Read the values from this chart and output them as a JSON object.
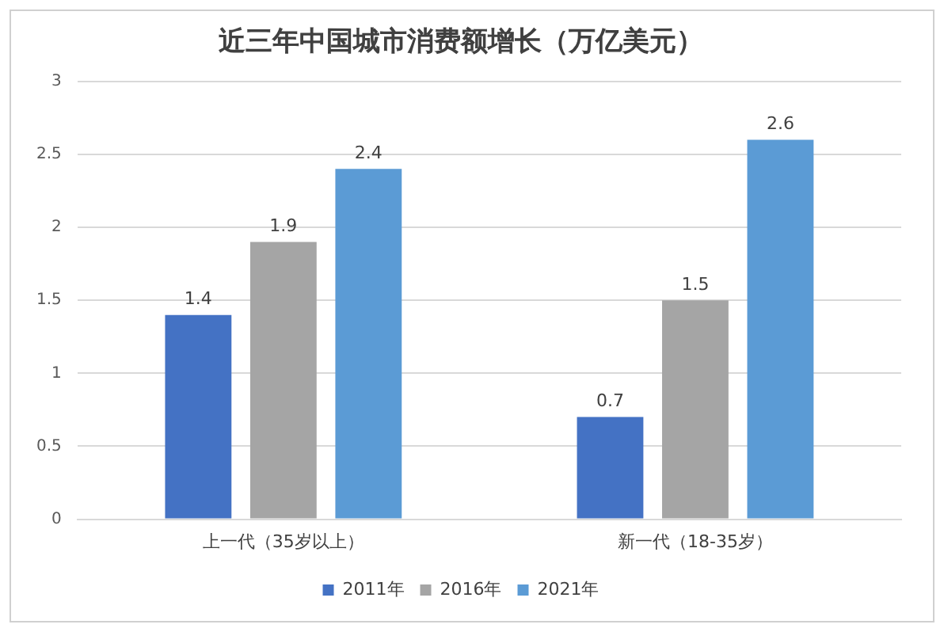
{
  "chart_data": {
    "type": "bar",
    "title": "近三年中国城市消费额增长（万亿美元）",
    "categories": [
      "上一代（35岁以上）",
      "新一代（18-35岁）"
    ],
    "series": [
      {
        "name": "2011年",
        "color": "#4472c4",
        "values": [
          1.4,
          0.7
        ]
      },
      {
        "name": "2016年",
        "color": "#a5a5a5",
        "values": [
          1.9,
          1.5
        ]
      },
      {
        "name": "2021年",
        "color": "#5b9bd5",
        "values": [
          2.4,
          2.6
        ]
      }
    ],
    "ylim": [
      0,
      3
    ],
    "yticks": [
      0,
      0.5,
      1,
      1.5,
      2,
      2.5,
      3
    ],
    "grid": "y",
    "legend": "bottom",
    "data_labels": true
  }
}
